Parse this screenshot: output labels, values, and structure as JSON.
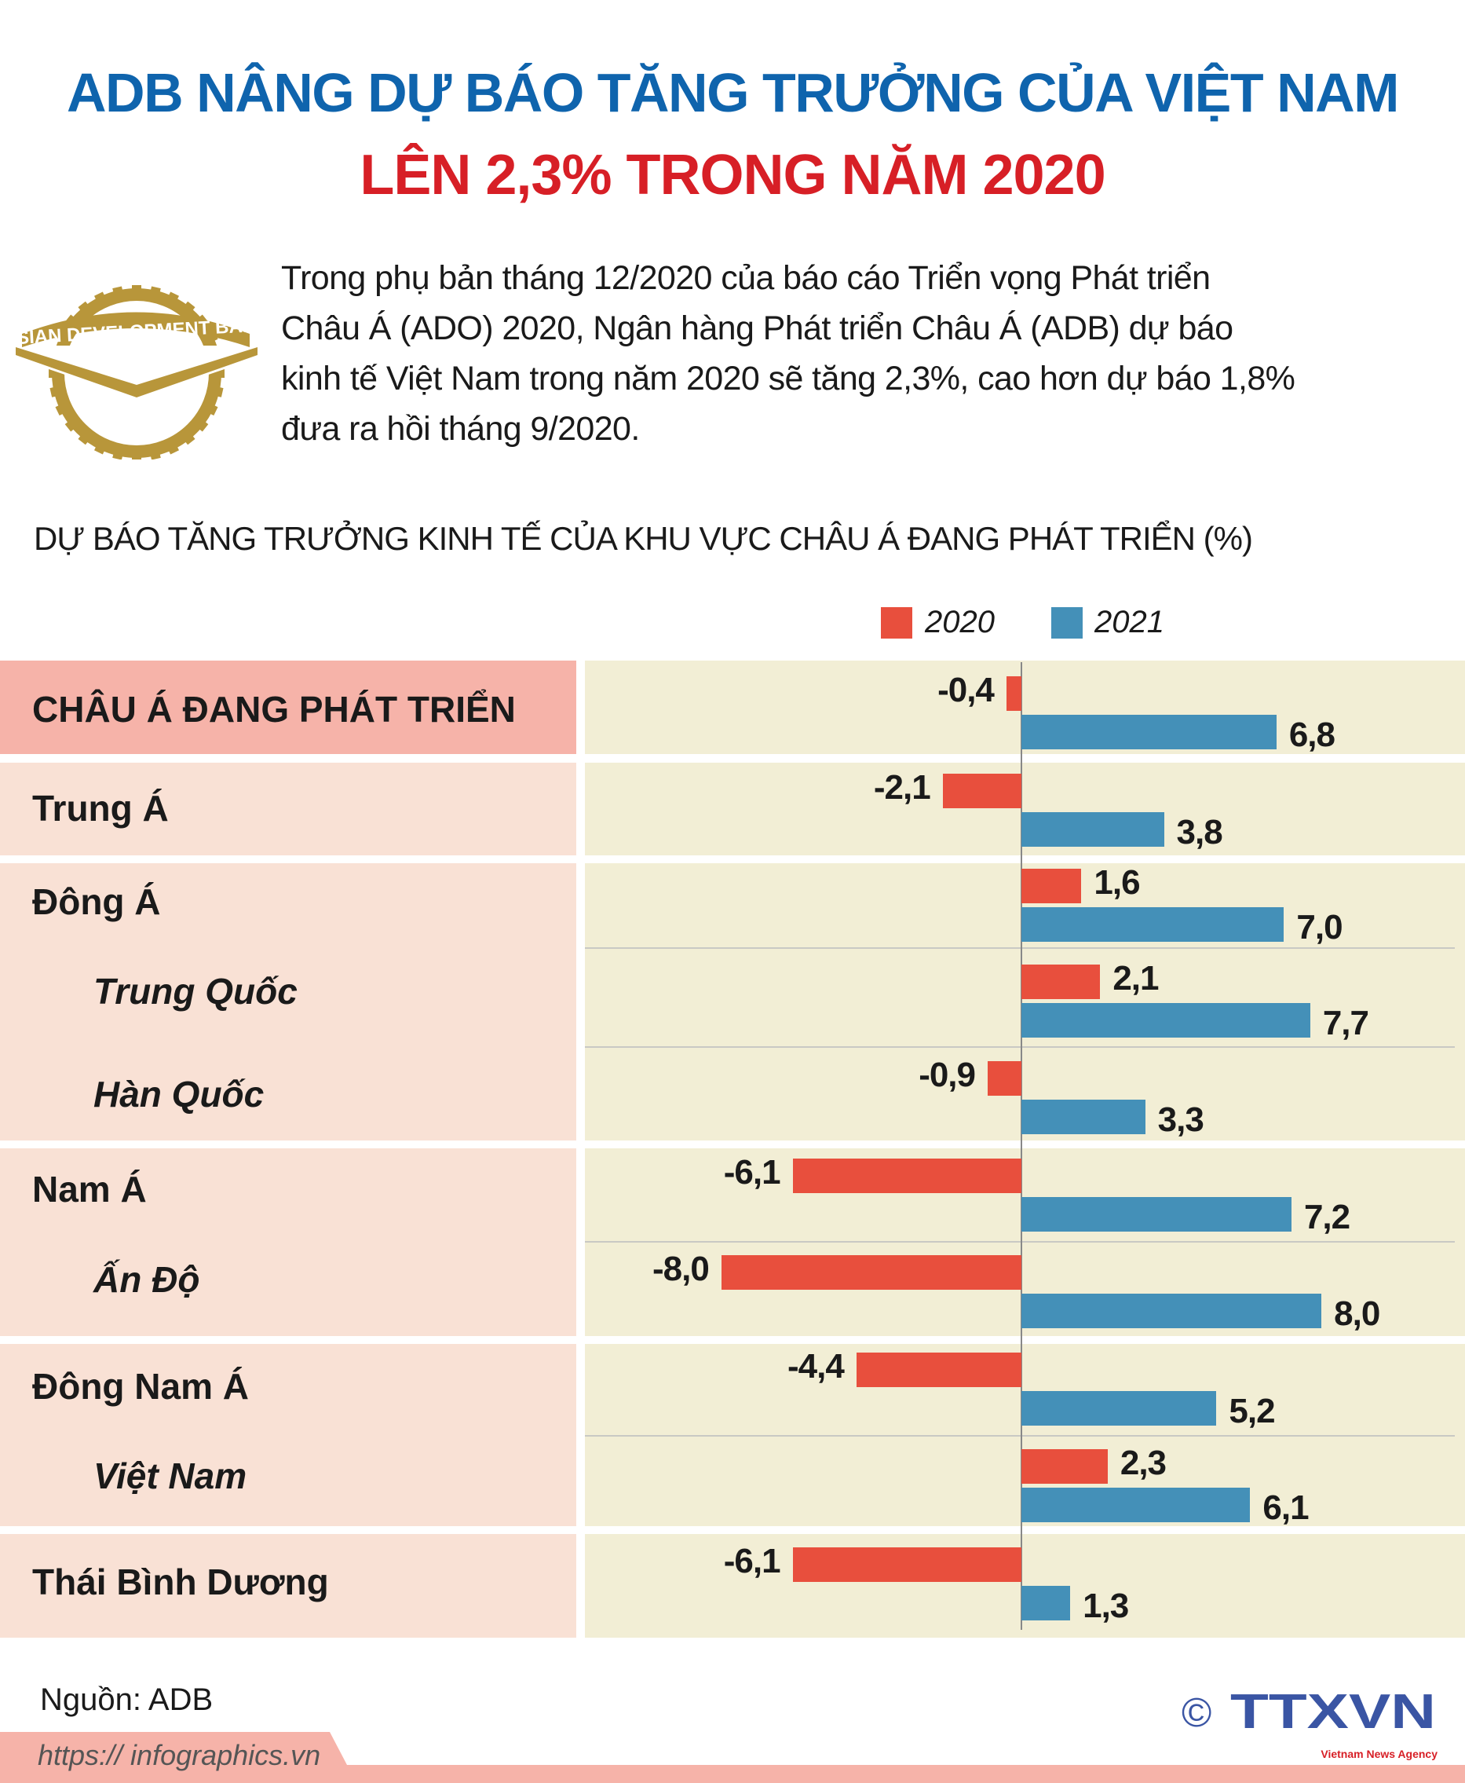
{
  "header": {
    "title_line1": "ADB NÂNG DỰ BÁO TĂNG TRƯỞNG CỦA VIỆT NAM",
    "title_line2": "LÊN 2,3% TRONG NĂM 2020"
  },
  "logo": {
    "text": "ASIAN DEVELOPMENT BANK",
    "color": "#b8963a"
  },
  "intro": {
    "lines": [
      "Trong phụ bản tháng 12/2020 của báo cáo Triển vọng Phát triển",
      "Châu Á (ADO) 2020, Ngân hàng Phát triển Châu Á (ADB) dự báo",
      "kinh tế Việt Nam trong năm 2020 sẽ tăng 2,3%, cao hơn dự báo 1,8%",
      "đưa ra hồi tháng 9/2020."
    ]
  },
  "chart_data": {
    "type": "bar",
    "orientation": "horizontal",
    "title": "DỰ BÁO TĂNG TRƯỞNG KINH TẾ CỦA KHU VỰC CHÂU Á ĐANG PHÁT TRIỂN (%)",
    "categories": [
      "CHÂU Á ĐANG PHÁT TRIỂN",
      "Trung Á",
      "Đông Á",
      "Trung Quốc",
      "Hàn Quốc",
      "Nam Á",
      "Ấn Độ",
      "Đông Nam Á",
      "Việt Nam",
      "Thái Bình Dương"
    ],
    "subcategory": [
      false,
      false,
      false,
      true,
      true,
      false,
      true,
      false,
      true,
      false
    ],
    "series": [
      {
        "name": "2020",
        "color": "#e84f3d",
        "values": [
          -0.4,
          -2.1,
          1.6,
          2.1,
          -0.9,
          -6.1,
          -8.0,
          -4.4,
          2.3,
          -6.1
        ]
      },
      {
        "name": "2021",
        "color": "#4490b8",
        "values": [
          6.8,
          3.8,
          7.0,
          7.7,
          3.3,
          7.2,
          8.0,
          5.2,
          6.1,
          1.3
        ]
      }
    ],
    "legend_position": "top-right",
    "grid": false,
    "decimal_separator": ","
  },
  "footer": {
    "source": "Nguồn: ADB",
    "url": "https:// infographics.vn",
    "agency_logo": "TTXVN",
    "agency_tagline": "Vietnam News Agency",
    "copyright_symbol": "©"
  },
  "colors": {
    "title_blue": "#0f64ad",
    "title_red": "#d71f26",
    "header_row": "#f6b3a9",
    "label_bg": "#f9e1d5",
    "chart_bg": "#f2eed5"
  }
}
